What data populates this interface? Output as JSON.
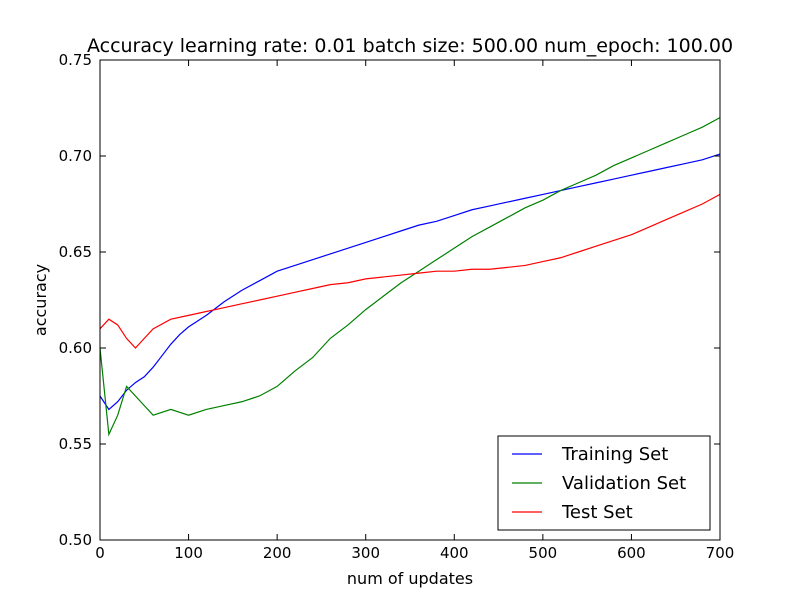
{
  "chart_data": {
    "type": "line",
    "title": "Accuracy learning rate: 0.01 batch size: 500.00 num_epoch: 100.00",
    "xlabel": "num of updates",
    "ylabel": "accuracy",
    "xlim": [
      0,
      700
    ],
    "ylim": [
      0.5,
      0.75
    ],
    "xticks": [
      0,
      100,
      200,
      300,
      400,
      500,
      600,
      700
    ],
    "yticks": [
      0.5,
      0.55,
      0.6,
      0.65,
      0.7,
      0.75
    ],
    "xtick_labels": [
      "0",
      "100",
      "200",
      "300",
      "400",
      "500",
      "600",
      "700"
    ],
    "ytick_labels": [
      "0.50",
      "0.55",
      "0.60",
      "0.65",
      "0.70",
      "0.75"
    ],
    "grid": false,
    "legend_position": "lower-right",
    "series": [
      {
        "name": "Training Set",
        "color": "#0000ff",
        "x": [
          0,
          10,
          20,
          30,
          40,
          50,
          60,
          70,
          80,
          90,
          100,
          120,
          140,
          160,
          180,
          200,
          220,
          240,
          260,
          280,
          300,
          320,
          340,
          360,
          380,
          400,
          420,
          440,
          460,
          480,
          500,
          520,
          540,
          560,
          580,
          600,
          620,
          640,
          660,
          680,
          700
        ],
        "values": [
          0.575,
          0.568,
          0.572,
          0.578,
          0.582,
          0.585,
          0.59,
          0.596,
          0.602,
          0.607,
          0.611,
          0.617,
          0.624,
          0.63,
          0.635,
          0.64,
          0.643,
          0.646,
          0.649,
          0.652,
          0.655,
          0.658,
          0.661,
          0.664,
          0.666,
          0.669,
          0.672,
          0.674,
          0.676,
          0.678,
          0.68,
          0.682,
          0.684,
          0.686,
          0.688,
          0.69,
          0.692,
          0.694,
          0.696,
          0.698,
          0.701
        ]
      },
      {
        "name": "Validation Set",
        "color": "#008000",
        "x": [
          0,
          10,
          20,
          30,
          40,
          50,
          60,
          80,
          100,
          120,
          140,
          160,
          180,
          200,
          220,
          240,
          260,
          280,
          300,
          320,
          340,
          360,
          380,
          400,
          420,
          440,
          460,
          480,
          500,
          520,
          540,
          560,
          580,
          600,
          620,
          640,
          660,
          680,
          700
        ],
        "values": [
          0.6,
          0.555,
          0.565,
          0.58,
          0.575,
          0.57,
          0.565,
          0.568,
          0.565,
          0.568,
          0.57,
          0.572,
          0.575,
          0.58,
          0.588,
          0.595,
          0.605,
          0.612,
          0.62,
          0.627,
          0.634,
          0.64,
          0.646,
          0.652,
          0.658,
          0.663,
          0.668,
          0.673,
          0.677,
          0.682,
          0.686,
          0.69,
          0.695,
          0.699,
          0.703,
          0.707,
          0.711,
          0.715,
          0.72
        ]
      },
      {
        "name": "Test Set",
        "color": "#ff0000",
        "x": [
          0,
          10,
          20,
          30,
          40,
          50,
          60,
          80,
          100,
          120,
          140,
          160,
          180,
          200,
          220,
          240,
          260,
          280,
          300,
          320,
          340,
          360,
          380,
          400,
          420,
          440,
          460,
          480,
          500,
          520,
          540,
          560,
          580,
          600,
          620,
          640,
          660,
          680,
          700
        ],
        "values": [
          0.61,
          0.615,
          0.612,
          0.605,
          0.6,
          0.605,
          0.61,
          0.615,
          0.617,
          0.619,
          0.621,
          0.623,
          0.625,
          0.627,
          0.629,
          0.631,
          0.633,
          0.634,
          0.636,
          0.637,
          0.638,
          0.639,
          0.64,
          0.64,
          0.641,
          0.641,
          0.642,
          0.643,
          0.645,
          0.647,
          0.65,
          0.653,
          0.656,
          0.659,
          0.663,
          0.667,
          0.671,
          0.675,
          0.68
        ]
      }
    ]
  }
}
